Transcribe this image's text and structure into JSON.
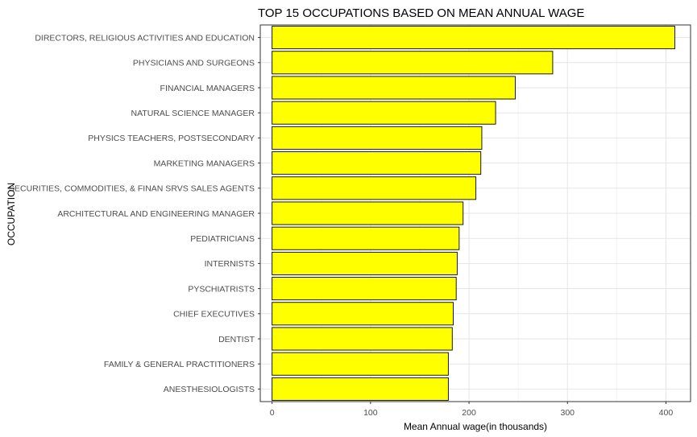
{
  "chart_data": {
    "type": "bar",
    "orientation": "horizontal",
    "title": "TOP 15 OCCUPATIONS BASED ON MEAN ANNUAL WAGE",
    "xlabel": "Mean Annual wage(in thousands)",
    "ylabel": "OCCUPATION",
    "categories": [
      "DIRECTORS, RELIGIOUS ACTIVITIES AND EDUCATION",
      "PHYSICIANS AND SURGEONS",
      "FINANCIAL MANAGERS",
      "NATURAL SCIENCE MANAGER",
      "PHYSICS TEACHERS, POSTSECONDARY",
      "MARKETING  MANAGERS",
      "SECURITIES, COMMODITIES, & FINAN SRVS SALES AGENTS",
      "ARCHITECTURAL AND ENGINEERING MANAGER",
      "PEDIATRICIANS",
      "INTERNISTS",
      "PYSCHIATRISTS",
      "CHIEF EXECUTIVES",
      "DENTIST",
      "FAMILY & GENERAL PRACTITIONERS",
      "ANESTHESIOLOGISTS"
    ],
    "values": [
      409,
      285,
      247,
      227,
      213,
      212,
      207,
      194,
      190,
      188,
      187,
      184,
      183,
      179,
      179
    ],
    "xlim": [
      -12,
      425
    ],
    "xticks": [
      0,
      100,
      200,
      300,
      400
    ],
    "bar_fill": "#ffff00",
    "bar_stroke": "#000000",
    "grid": true,
    "legend": "none"
  }
}
